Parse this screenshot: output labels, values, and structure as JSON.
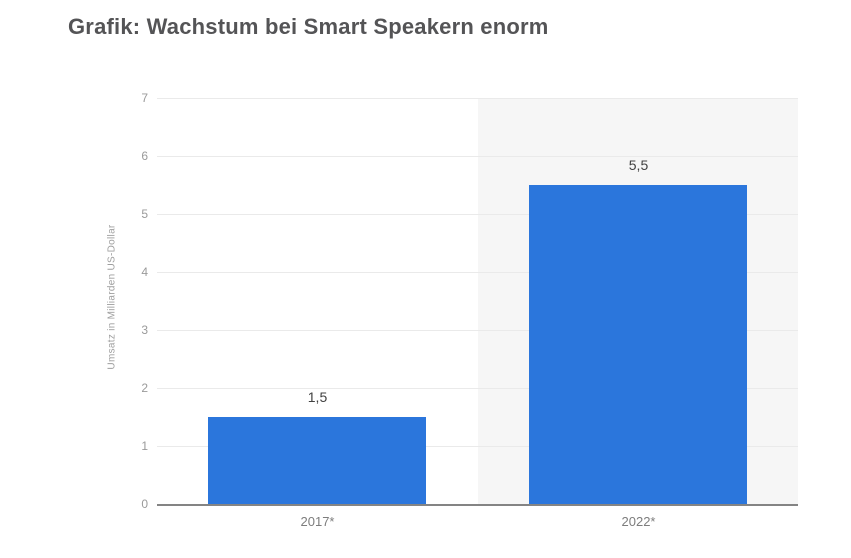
{
  "header": {
    "title": "Grafik: Wachstum bei Smart Speakern enorm"
  },
  "chart_data": {
    "type": "bar",
    "title": "Grafik: Wachstum bei Smart Speakern enorm",
    "categories": [
      "2017*",
      "2022*"
    ],
    "values": [
      1.5,
      5.5
    ],
    "value_labels": [
      "1,5",
      "5,5"
    ],
    "xlabel": "",
    "ylabel": "Umsatz in Milliarden US-Dollar",
    "ylim": [
      0,
      7
    ],
    "yticks": [
      0,
      1,
      2,
      3,
      4,
      5,
      6,
      7
    ],
    "grid": true,
    "legend": "none",
    "colors": {
      "bar": "#2b76dc",
      "column_band_even": "#ffffff",
      "column_band_odd": "#f6f6f6",
      "gridline": "#eaeaea",
      "axis_line": "#848484",
      "title_text": "#545456",
      "value_label_text": "#414141",
      "category_label_text": "#7d7d7d",
      "tick_label_text": "#9a9a9a",
      "axis_title_text": "#9e9e9e",
      "background": "#ffffff"
    }
  }
}
